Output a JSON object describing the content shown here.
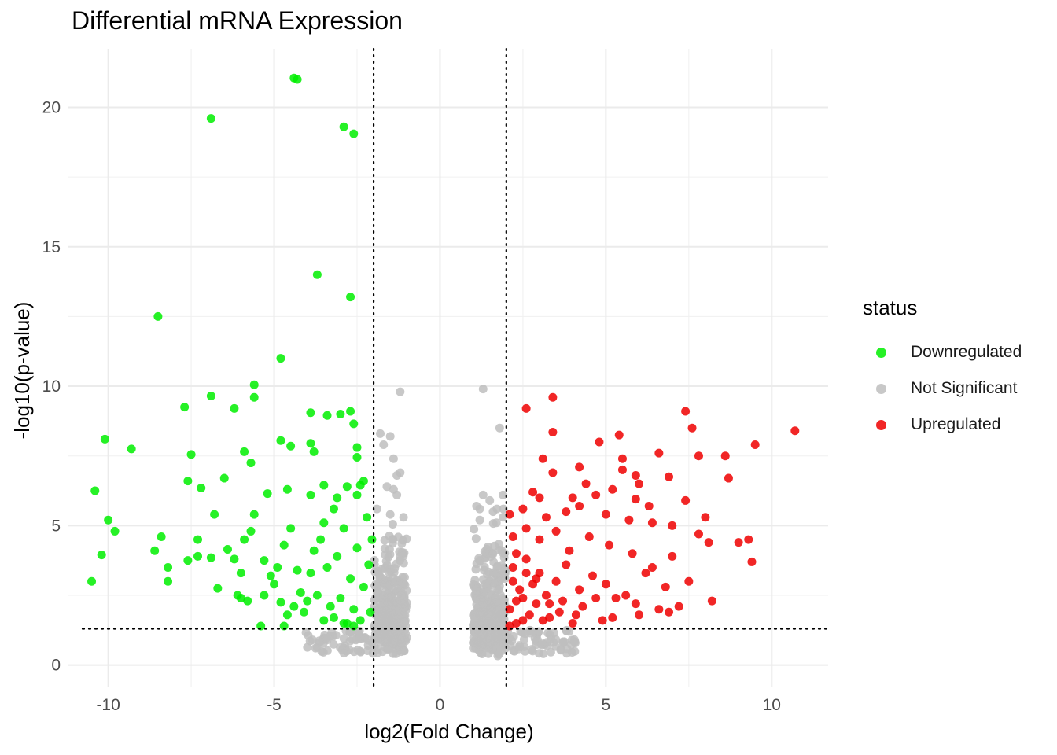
{
  "chart_data": {
    "type": "scatter",
    "title": "Differential mRNA Expression",
    "xlabel": "log2(Fold Change)",
    "ylabel": "-log10(p-value)",
    "xlim": [
      -11.2,
      11.7
    ],
    "ylim": [
      -0.8,
      22.1
    ],
    "x_ticks": [
      -10,
      -5,
      0,
      5,
      10
    ],
    "x_tick_labels": [
      "-10",
      "-5",
      "0",
      "5",
      "10"
    ],
    "y_ticks": [
      0,
      5,
      10,
      15,
      20
    ],
    "y_tick_labels": [
      "0",
      "5",
      "10",
      "15",
      "20"
    ],
    "grid": true,
    "reference_lines": {
      "vertical": [
        -2,
        2
      ],
      "horizontal": [
        1.3
      ],
      "style": "dotted"
    },
    "legend": {
      "title": "status",
      "position": "right"
    },
    "series": [
      {
        "name": "Downregulated",
        "color": "#00ee00",
        "points": [
          [
            -4.4,
            21.05
          ],
          [
            -4.3,
            21.0
          ],
          [
            -6.9,
            19.6
          ],
          [
            -2.9,
            19.3
          ],
          [
            -2.6,
            19.05
          ],
          [
            -3.7,
            14.0
          ],
          [
            -2.7,
            13.2
          ],
          [
            -8.5,
            12.5
          ],
          [
            -4.8,
            11.0
          ],
          [
            -5.6,
            10.05
          ],
          [
            -5.6,
            9.6
          ],
          [
            -6.9,
            9.65
          ],
          [
            -7.7,
            9.25
          ],
          [
            -6.2,
            9.2
          ],
          [
            -3.9,
            9.05
          ],
          [
            -3.4,
            8.95
          ],
          [
            -3.0,
            9.0
          ],
          [
            -2.7,
            9.1
          ],
          [
            -2.6,
            8.65
          ],
          [
            -10.1,
            8.1
          ],
          [
            -9.3,
            7.75
          ],
          [
            -7.5,
            7.55
          ],
          [
            -5.9,
            7.65
          ],
          [
            -5.7,
            7.25
          ],
          [
            -4.8,
            8.05
          ],
          [
            -4.5,
            7.85
          ],
          [
            -3.9,
            7.95
          ],
          [
            -3.8,
            7.65
          ],
          [
            -2.5,
            7.8
          ],
          [
            -2.5,
            7.45
          ],
          [
            -7.6,
            6.6
          ],
          [
            -7.2,
            6.35
          ],
          [
            -6.5,
            6.7
          ],
          [
            -10.4,
            6.25
          ],
          [
            -2.4,
            6.45
          ],
          [
            -2.3,
            6.6
          ],
          [
            -2.5,
            6.1
          ],
          [
            -2.8,
            6.4
          ],
          [
            -3.1,
            6.0
          ],
          [
            -3.5,
            6.45
          ],
          [
            -3.9,
            6.1
          ],
          [
            -4.6,
            6.3
          ],
          [
            -5.2,
            6.15
          ],
          [
            -6.8,
            5.4
          ],
          [
            -10.0,
            5.2
          ],
          [
            -9.8,
            4.8
          ],
          [
            -8.4,
            4.6
          ],
          [
            -8.6,
            4.1
          ],
          [
            -7.3,
            4.5
          ],
          [
            -10.2,
            3.95
          ],
          [
            -8.2,
            3.5
          ],
          [
            -8.2,
            3.0
          ],
          [
            -7.6,
            3.75
          ],
          [
            -7.3,
            3.9
          ],
          [
            -6.9,
            3.85
          ],
          [
            -6.7,
            2.75
          ],
          [
            -10.5,
            3.0
          ],
          [
            -6.4,
            4.15
          ],
          [
            -6.2,
            3.8
          ],
          [
            -6.0,
            3.3
          ],
          [
            -5.9,
            4.5
          ],
          [
            -5.7,
            4.8
          ],
          [
            -5.6,
            5.4
          ],
          [
            -5.3,
            3.75
          ],
          [
            -5.1,
            3.2
          ],
          [
            -5.0,
            2.9
          ],
          [
            -5.3,
            2.5
          ],
          [
            -4.9,
            3.5
          ],
          [
            -4.7,
            4.3
          ],
          [
            -4.5,
            4.9
          ],
          [
            -4.3,
            3.4
          ],
          [
            -4.2,
            2.6
          ],
          [
            -4.8,
            2.25
          ],
          [
            -4.6,
            1.8
          ],
          [
            -5.4,
            1.4
          ],
          [
            -4.7,
            1.4
          ],
          [
            -4.1,
            1.9
          ],
          [
            -3.9,
            3.3
          ],
          [
            -3.8,
            4.1
          ],
          [
            -3.6,
            4.5
          ],
          [
            -3.5,
            5.1
          ],
          [
            -3.4,
            3.5
          ],
          [
            -3.3,
            2.1
          ],
          [
            -3.2,
            5.6
          ],
          [
            -3.1,
            3.9
          ],
          [
            -3.0,
            2.4
          ],
          [
            -2.9,
            4.9
          ],
          [
            -2.8,
            1.5
          ],
          [
            -2.7,
            3.1
          ],
          [
            -2.6,
            2.0
          ],
          [
            -2.5,
            4.2
          ],
          [
            -2.4,
            1.6
          ],
          [
            -2.3,
            2.8
          ],
          [
            -2.2,
            5.3
          ],
          [
            -2.15,
            3.6
          ],
          [
            -2.1,
            1.9
          ],
          [
            -2.05,
            4.5
          ],
          [
            -6.1,
            2.5
          ],
          [
            -6.0,
            2.4
          ],
          [
            -5.8,
            2.3
          ],
          [
            -4.4,
            2.1
          ],
          [
            -4.0,
            2.3
          ],
          [
            -3.7,
            2.5
          ],
          [
            -3.5,
            1.6
          ],
          [
            -3.2,
            1.7
          ],
          [
            -2.9,
            1.5
          ],
          [
            -2.6,
            1.4
          ]
        ]
      },
      {
        "name": "Not Significant",
        "color": "#bebebe",
        "points": [
          [
            -1.2,
            9.8
          ],
          [
            1.3,
            9.9
          ],
          [
            1.8,
            8.5
          ],
          [
            -1.8,
            8.3
          ],
          [
            -1.5,
            8.2
          ],
          [
            -1.7,
            7.9
          ],
          [
            -1.4,
            7.4
          ],
          [
            -1.2,
            6.9
          ],
          [
            -1.3,
            6.8
          ],
          [
            -1.6,
            6.4
          ],
          [
            -1.4,
            6.3
          ],
          [
            -1.3,
            6.1
          ],
          [
            1.3,
            6.1
          ],
          [
            1.5,
            5.9
          ],
          [
            1.9,
            6.1
          ],
          [
            1.1,
            5.7
          ],
          [
            1.6,
            5.5
          ],
          [
            -1.9,
            5.6
          ],
          [
            -1.5,
            5.4
          ],
          [
            -1.1,
            5.3
          ],
          [
            1.2,
            5.2
          ],
          [
            1.7,
            5.1
          ],
          [
            1.9,
            5.3
          ]
        ]
      },
      {
        "name": "Upregulated",
        "color": "#ee0000",
        "points": [
          [
            10.7,
            8.4
          ],
          [
            9.5,
            7.9
          ],
          [
            7.4,
            9.1
          ],
          [
            7.6,
            8.5
          ],
          [
            3.4,
            9.6
          ],
          [
            2.6,
            9.2
          ],
          [
            3.4,
            8.35
          ],
          [
            4.8,
            8.0
          ],
          [
            5.4,
            8.25
          ],
          [
            6.6,
            7.6
          ],
          [
            7.8,
            7.5
          ],
          [
            8.6,
            7.5
          ],
          [
            3.1,
            7.4
          ],
          [
            5.5,
            7.4
          ],
          [
            5.5,
            7.0
          ],
          [
            4.2,
            7.1
          ],
          [
            5.9,
            6.8
          ],
          [
            6.9,
            6.75
          ],
          [
            8.7,
            6.7
          ],
          [
            3.4,
            6.9
          ],
          [
            4.4,
            6.5
          ],
          [
            5.2,
            6.3
          ],
          [
            6.0,
            6.5
          ],
          [
            4.0,
            6.0
          ],
          [
            5.9,
            5.95
          ],
          [
            6.3,
            5.7
          ],
          [
            7.4,
            5.9
          ],
          [
            4.7,
            6.1
          ],
          [
            3.0,
            6.0
          ],
          [
            2.8,
            6.2
          ],
          [
            8.0,
            5.3
          ],
          [
            7.0,
            5.0
          ],
          [
            6.4,
            5.1
          ],
          [
            5.7,
            5.2
          ],
          [
            5.0,
            5.4
          ],
          [
            4.2,
            5.7
          ],
          [
            3.8,
            5.5
          ],
          [
            3.2,
            5.3
          ],
          [
            2.5,
            5.6
          ],
          [
            2.1,
            5.4
          ],
          [
            7.8,
            4.7
          ],
          [
            8.1,
            4.4
          ],
          [
            9.0,
            4.4
          ],
          [
            9.3,
            4.5
          ],
          [
            9.4,
            3.7
          ],
          [
            7.0,
            3.9
          ],
          [
            6.4,
            3.5
          ],
          [
            5.8,
            4.0
          ],
          [
            5.1,
            4.3
          ],
          [
            4.5,
            4.6
          ],
          [
            3.9,
            4.1
          ],
          [
            3.5,
            4.8
          ],
          [
            3.0,
            4.5
          ],
          [
            2.6,
            4.9
          ],
          [
            2.3,
            4.0
          ],
          [
            7.5,
            3.0
          ],
          [
            6.8,
            2.8
          ],
          [
            6.2,
            3.3
          ],
          [
            5.6,
            2.5
          ],
          [
            5.0,
            2.9
          ],
          [
            4.6,
            3.2
          ],
          [
            4.2,
            2.7
          ],
          [
            3.8,
            3.6
          ],
          [
            3.3,
            2.2
          ],
          [
            2.9,
            3.1
          ],
          [
            2.5,
            2.4
          ],
          [
            2.2,
            3.5
          ],
          [
            8.2,
            2.3
          ],
          [
            7.2,
            2.1
          ],
          [
            6.6,
            2.0
          ],
          [
            6.0,
            1.8
          ],
          [
            5.3,
            2.4
          ],
          [
            4.9,
            1.6
          ],
          [
            4.3,
            2.1
          ],
          [
            4.0,
            1.5
          ],
          [
            3.6,
            1.9
          ],
          [
            3.1,
            1.6
          ],
          [
            2.7,
            1.8
          ],
          [
            2.3,
            1.5
          ],
          [
            2.1,
            2.0
          ],
          [
            2.1,
            1.4
          ],
          [
            2.4,
            2.7
          ],
          [
            2.8,
            2.9
          ],
          [
            3.2,
            2.5
          ],
          [
            3.7,
            2.3
          ],
          [
            4.1,
            1.8
          ],
          [
            4.7,
            2.4
          ],
          [
            5.2,
            1.7
          ],
          [
            5.9,
            2.2
          ],
          [
            6.9,
            1.9
          ],
          [
            2.2,
            4.6
          ],
          [
            2.6,
            3.8
          ],
          [
            3.0,
            3.3
          ],
          [
            3.5,
            3.0
          ],
          [
            2.2,
            3.0
          ],
          [
            2.5,
            1.6
          ],
          [
            2.9,
            2.2
          ],
          [
            3.3,
            1.7
          ],
          [
            2.3,
            2.3
          ],
          [
            2.6,
            3.3
          ]
        ]
      }
    ]
  }
}
